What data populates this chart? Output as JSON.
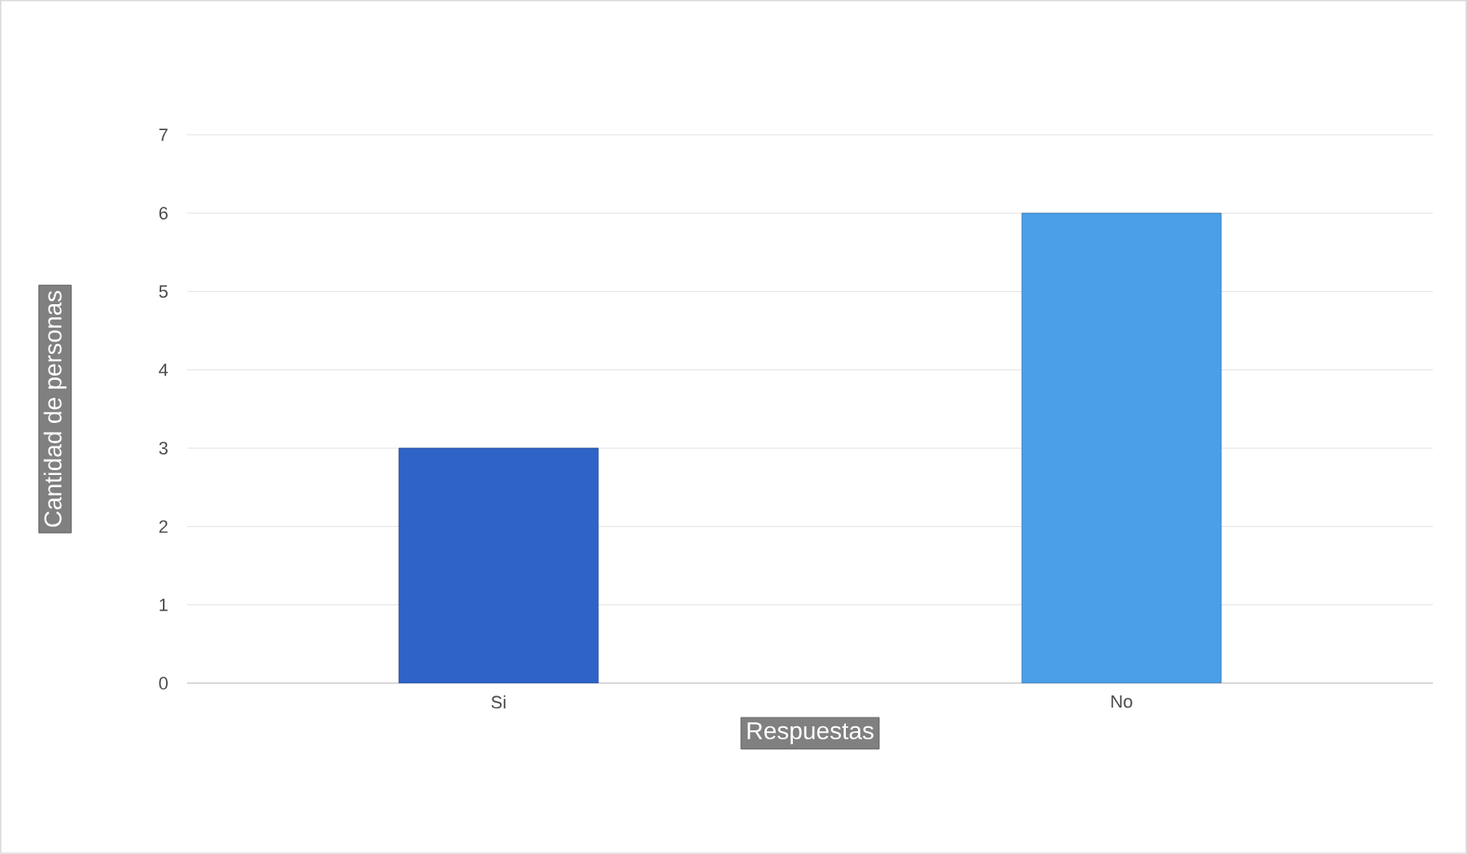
{
  "chart_data": {
    "type": "bar",
    "xlabel": "Respuestas",
    "ylabel": "Cantidad de personas",
    "categories": [
      "Si",
      "No"
    ],
    "values": [
      3,
      6
    ],
    "colors": [
      "#2f63c8",
      "#4a9fe8"
    ],
    "ylim": [
      0,
      7
    ],
    "yticks": [
      0,
      1,
      2,
      3,
      4,
      5,
      6,
      7
    ],
    "grid": "y"
  }
}
